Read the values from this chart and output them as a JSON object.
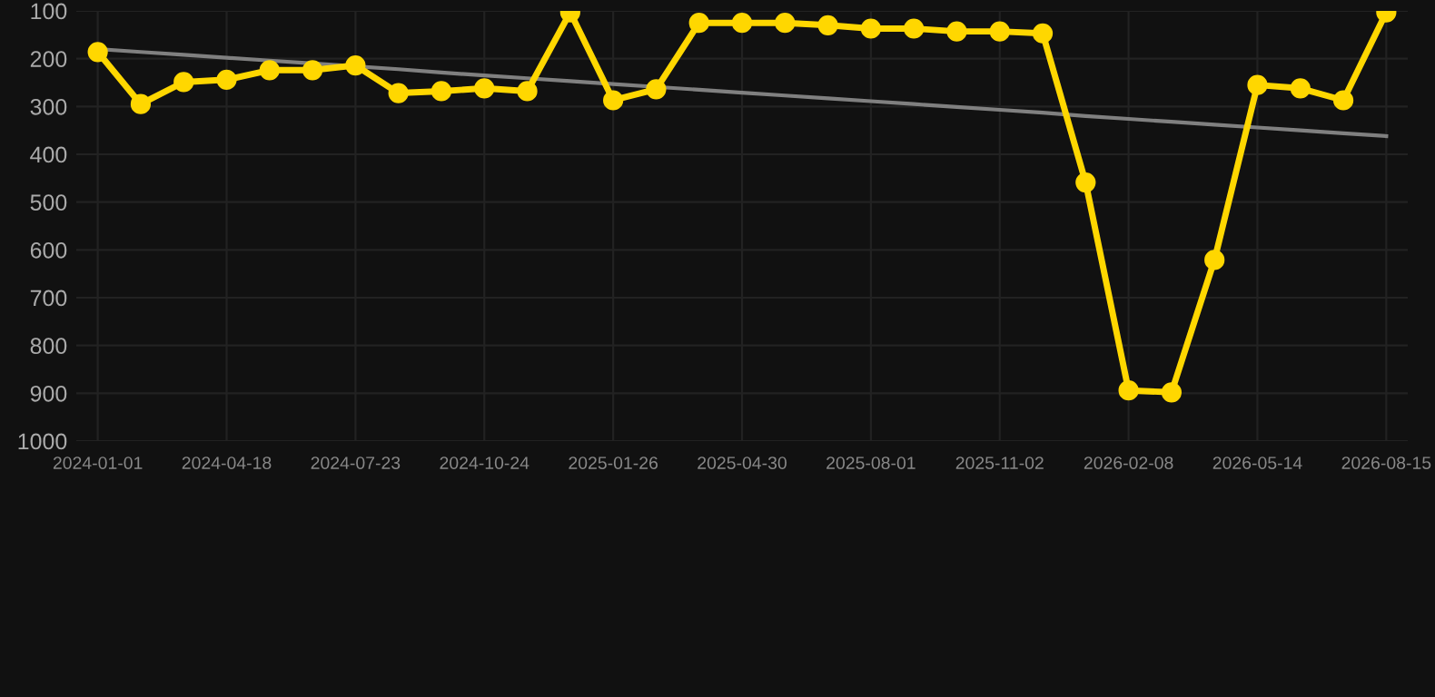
{
  "chart_data": {
    "type": "line",
    "categories": [
      "2024-01-01",
      null,
      null,
      "2024-04-18",
      null,
      null,
      "2024-07-23",
      null,
      null,
      "2024-10-24",
      null,
      null,
      "2025-01-26",
      null,
      null,
      "2025-04-30",
      null,
      null,
      "2025-08-01",
      null,
      null,
      "2025-11-02",
      null,
      null,
      "2026-02-08",
      null,
      null,
      "2026-05-14",
      null,
      null,
      "2026-08-15"
    ],
    "series": [
      {
        "color": "#ffd700",
        "marker": "circle",
        "values": [
          186,
          295,
          249,
          244,
          224,
          224,
          214,
          272,
          268,
          262,
          268,
          103,
          287,
          264,
          125,
          125,
          125,
          130,
          137,
          137,
          143,
          143,
          147,
          459,
          894,
          898,
          621,
          255,
          262,
          287,
          103
        ]
      },
      {
        "type": "line",
        "color": "#808080",
        "marker": "none",
        "values": [
          180,
          186,
          192,
          198,
          204,
          210,
          216,
          222,
          229,
          235,
          241,
          247,
          253,
          259,
          265,
          271,
          277,
          283,
          289,
          295,
          301,
          307,
          313,
          320,
          326,
          332,
          338,
          344,
          350,
          356,
          362
        ]
      }
    ],
    "ylim": [
      1000,
      100
    ],
    "yticks": [
      100,
      200,
      300,
      400,
      500,
      600,
      700,
      800,
      900,
      1000
    ],
    "grid": true
  }
}
